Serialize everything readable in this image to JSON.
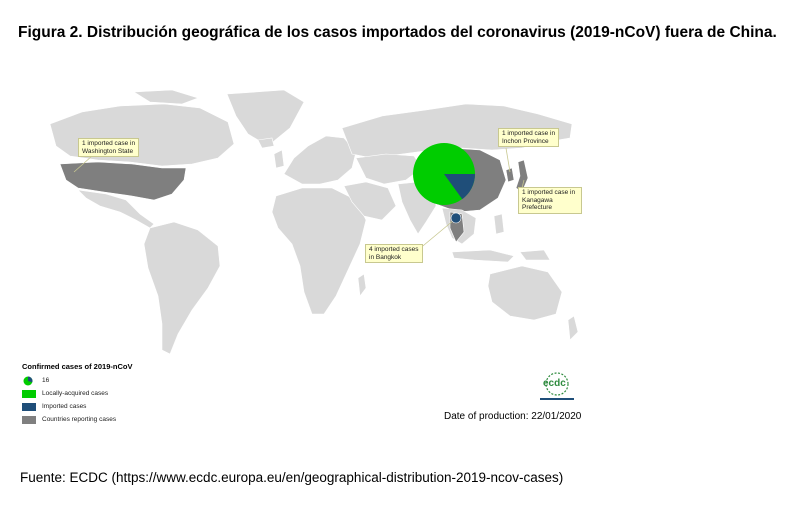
{
  "figure": {
    "title": "Figura 2. Distribución geográfica de los casos importados del coronavirus (2019-nCoV) fuera de China.",
    "source": "Fuente: ECDC (https://www.ecdc.europa.eu/en/geographical-distribution-2019-ncov-cases)"
  },
  "map": {
    "colors": {
      "ocean": "#ffffff",
      "land": "#d9d9d9",
      "border": "#ffffff",
      "reporting": "#7f7f7f",
      "locally_acquired": "#00cc00",
      "imported": "#1f4e79",
      "callout_bg": "#ffffcc"
    },
    "callouts": [
      {
        "id": "washington",
        "line1": "1 imported case in",
        "line2": "Washington State"
      },
      {
        "id": "incheon",
        "line1": "1 imported case in",
        "line2": "Inchon Province"
      },
      {
        "id": "kanagawa",
        "line1": "1 imported case in",
        "line2": "Kanagawa Prefecture"
      },
      {
        "id": "bangkok",
        "line1": "4 imported cases",
        "line2": "in Bangkok"
      }
    ],
    "pie": {
      "location": "China",
      "locally_acquired_share": 0.85,
      "imported_share": 0.15
    }
  },
  "legend": {
    "title": "Confirmed cases of 2019-nCoV",
    "items": [
      {
        "label": "16",
        "icon": "pie-symbol"
      },
      {
        "label": "Locally-acquired cases",
        "color": "#00cc00"
      },
      {
        "label": "Imported cases",
        "color": "#1f4e79"
      },
      {
        "label": "Countries reporting cases",
        "color": "#7f7f7f"
      }
    ]
  },
  "production_date": "Date of production: 22/01/2020",
  "logo": {
    "text": "ecdc",
    "icon": "ecdc-logo"
  }
}
